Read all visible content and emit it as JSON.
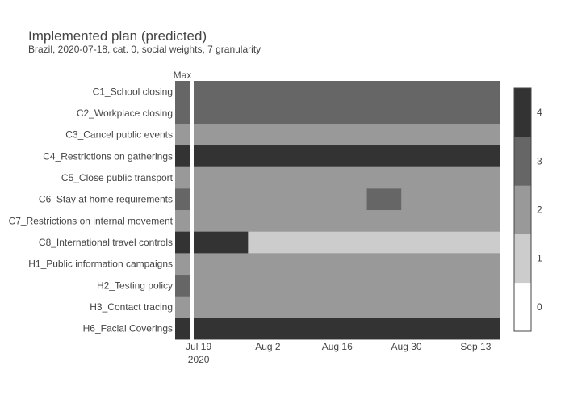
{
  "chart_data": {
    "type": "heatmap",
    "title": "Implemented plan (predicted)",
    "subtitle": "Brazil, 2020-07-18, cat. 0, social weights, 7 granularity",
    "max_label": "Max",
    "rows": [
      "C1_School closing",
      "C2_Workplace closing",
      "C3_Cancel public events",
      "C4_Restrictions on gatherings",
      "C5_Close public transport",
      "C6_Stay at home requirements",
      "C7_Restrictions on internal movement",
      "C8_International travel controls",
      "H1_Public information campaigns",
      "H2_Testing policy",
      "H3_Contact tracing",
      "H6_Facial Coverings"
    ],
    "max_values": [
      3,
      3,
      2,
      4,
      2,
      3,
      2,
      4,
      2,
      3,
      2,
      4
    ],
    "x_domain": [
      "2020-07-18",
      "2020-09-18"
    ],
    "x_ticks": [
      {
        "date": "2020-07-19",
        "label": "Jul 19",
        "sublabel": "2020"
      },
      {
        "date": "2020-08-02",
        "label": "Aug 2",
        "sublabel": ""
      },
      {
        "date": "2020-08-16",
        "label": "Aug 16",
        "sublabel": ""
      },
      {
        "date": "2020-08-30",
        "label": "Aug 30",
        "sublabel": ""
      },
      {
        "date": "2020-09-13",
        "label": "Sep 13",
        "sublabel": ""
      }
    ],
    "segments": [
      [
        {
          "start": "2020-07-18",
          "end": "2020-09-18",
          "value": 3
        }
      ],
      [
        {
          "start": "2020-07-18",
          "end": "2020-09-18",
          "value": 3
        }
      ],
      [
        {
          "start": "2020-07-18",
          "end": "2020-09-18",
          "value": 2
        }
      ],
      [
        {
          "start": "2020-07-18",
          "end": "2020-09-18",
          "value": 4
        }
      ],
      [
        {
          "start": "2020-07-18",
          "end": "2020-09-18",
          "value": 2
        }
      ],
      [
        {
          "start": "2020-07-18",
          "end": "2020-08-22",
          "value": 2
        },
        {
          "start": "2020-08-22",
          "end": "2020-08-29",
          "value": 3
        },
        {
          "start": "2020-08-29",
          "end": "2020-09-18",
          "value": 2
        }
      ],
      [
        {
          "start": "2020-07-18",
          "end": "2020-09-18",
          "value": 2
        }
      ],
      [
        {
          "start": "2020-07-18",
          "end": "2020-07-29",
          "value": 4
        },
        {
          "start": "2020-07-29",
          "end": "2020-09-18",
          "value": 1
        }
      ],
      [
        {
          "start": "2020-07-18",
          "end": "2020-09-18",
          "value": 2
        }
      ],
      [
        {
          "start": "2020-07-18",
          "end": "2020-09-18",
          "value": 2
        }
      ],
      [
        {
          "start": "2020-07-18",
          "end": "2020-09-18",
          "value": 2
        }
      ],
      [
        {
          "start": "2020-07-18",
          "end": "2020-09-18",
          "value": 4
        }
      ]
    ],
    "colorscale": [
      {
        "value": 0,
        "color": "#ffffff"
      },
      {
        "value": 1,
        "color": "#cccccc"
      },
      {
        "value": 2,
        "color": "#999999"
      },
      {
        "value": 3,
        "color": "#666666"
      },
      {
        "value": 4,
        "color": "#333333"
      }
    ],
    "colorbar_ticks": [
      0,
      1,
      2,
      3,
      4
    ],
    "zlim": [
      0,
      4
    ]
  }
}
